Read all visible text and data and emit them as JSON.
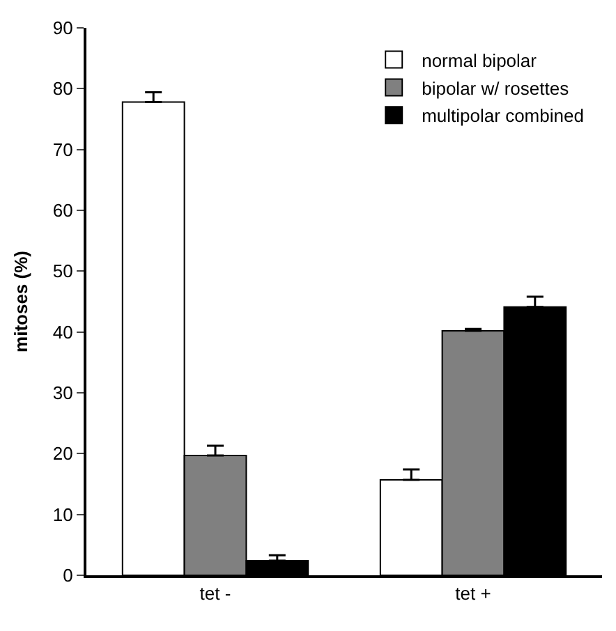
{
  "chart_data": {
    "type": "bar",
    "ylabel": "mitoses (%)",
    "categories": [
      "tet -",
      "tet +"
    ],
    "series": [
      {
        "name": "normal bipolar",
        "color": "#ffffff",
        "values": [
          77.8,
          15.7
        ],
        "errors": [
          1.6,
          1.7
        ]
      },
      {
        "name": "bipolar w/ rosettes",
        "color": "#808080",
        "values": [
          19.7,
          40.2
        ],
        "errors": [
          1.6,
          0.3
        ]
      },
      {
        "name": "multipolar combined",
        "color": "#000000",
        "values": [
          2.4,
          44.1
        ],
        "errors": [
          0.9,
          1.7
        ]
      }
    ],
    "ylim": [
      0,
      90
    ],
    "yticks": [
      0,
      10,
      20,
      30,
      40,
      50,
      60,
      70,
      80,
      90
    ],
    "legend": "top right"
  }
}
